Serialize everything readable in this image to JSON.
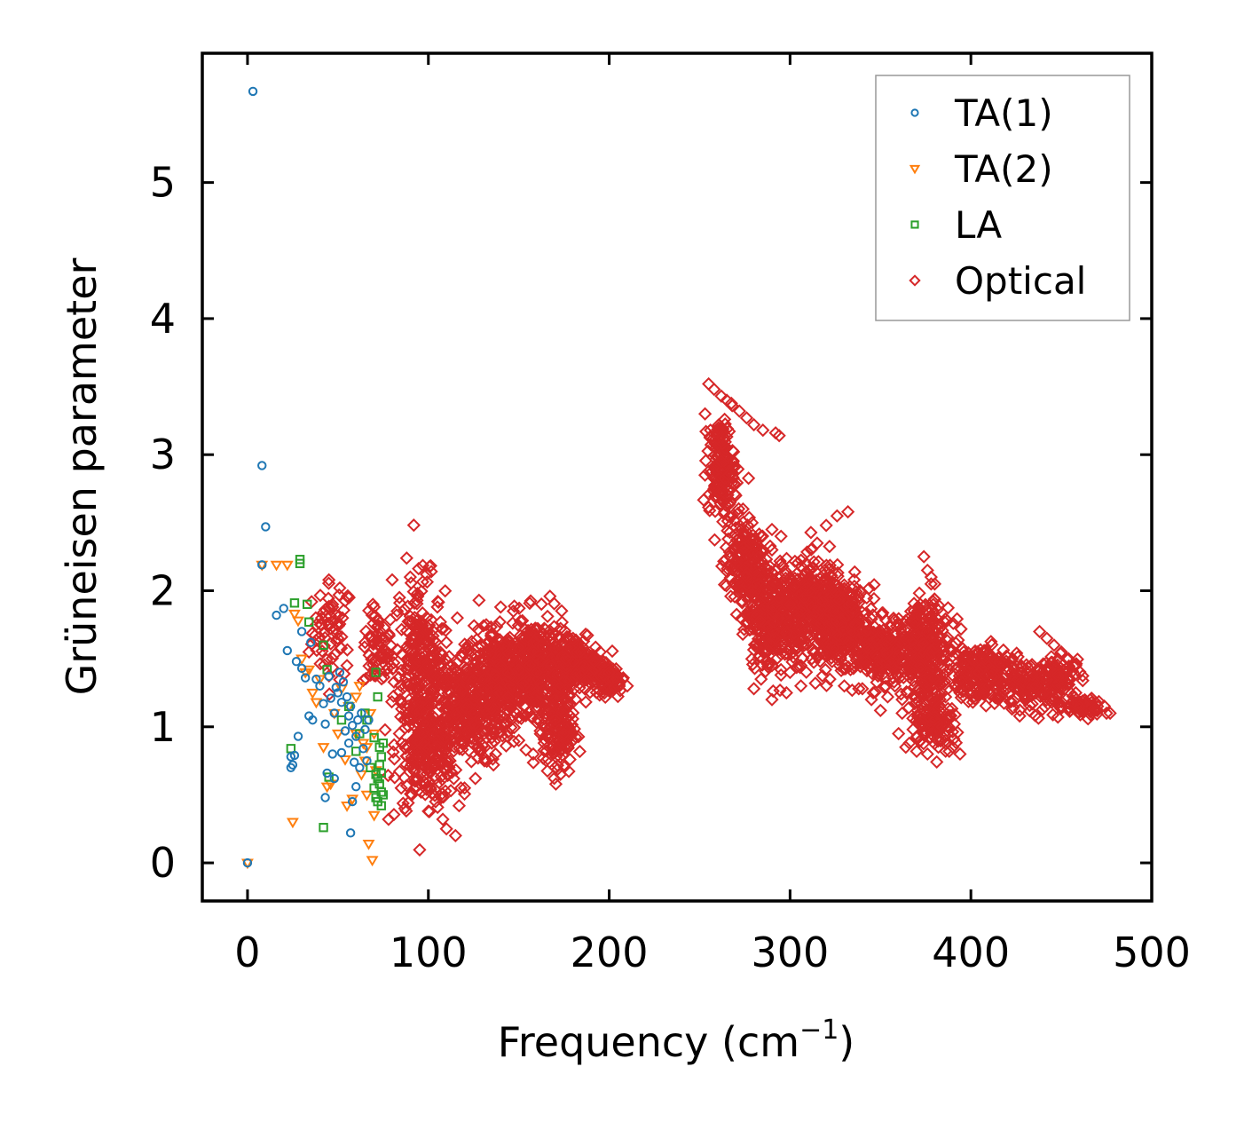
{
  "chart_data": {
    "type": "scatter",
    "title": "",
    "xlabel": "Frequency (cm",
    "xlabel_superscript": "−1",
    "xlabel_suffix": ")",
    "ylabel": "Grüneisen parameter",
    "xlim": [
      -25,
      500
    ],
    "ylim": [
      -0.28,
      5.95
    ],
    "x_ticks": [
      0,
      100,
      200,
      300,
      400,
      500
    ],
    "y_ticks": [
      0,
      1,
      2,
      3,
      4,
      5
    ],
    "x_tick_labels": [
      "0",
      "100",
      "200",
      "300",
      "400",
      "500"
    ],
    "y_tick_labels": [
      "0",
      "1",
      "2",
      "3",
      "4",
      "5"
    ],
    "grid": false,
    "legend_position": "top-right",
    "series": [
      {
        "name": "TA(1)",
        "marker": "circle",
        "color": "#1f77b4",
        "x": [
          3,
          8,
          10,
          0,
          8,
          16,
          20,
          22,
          25,
          26,
          27,
          28,
          30,
          30,
          32,
          34,
          35,
          36,
          38,
          40,
          42,
          43,
          44,
          45,
          46,
          47,
          48,
          48,
          49,
          50,
          51,
          52,
          52,
          53,
          54,
          55,
          56,
          56,
          57,
          58,
          59,
          60,
          60,
          61,
          62,
          63,
          64,
          65,
          66,
          67,
          24,
          24,
          57,
          43,
          58
        ],
        "y": [
          5.67,
          2.92,
          2.47,
          0.0,
          2.19,
          1.82,
          1.87,
          1.56,
          0.72,
          0.79,
          1.48,
          0.93,
          1.7,
          1.43,
          1.36,
          1.08,
          1.62,
          1.05,
          1.35,
          1.3,
          1.17,
          1.02,
          0.66,
          1.37,
          1.21,
          0.8,
          1.1,
          0.62,
          1.29,
          1.25,
          1.4,
          0.81,
          1.18,
          1.33,
          0.97,
          1.22,
          0.88,
          1.08,
          1.15,
          1.01,
          0.74,
          0.56,
          0.93,
          1.05,
          0.7,
          1.1,
          0.84,
          0.98,
          0.75,
          1.05,
          0.7,
          0.78,
          0.22,
          0.48,
          0.45
        ]
      },
      {
        "name": "TA(2)",
        "marker": "triangle-down",
        "color": "#ff7f0e",
        "x": [
          0,
          8,
          16,
          22,
          25,
          26,
          28,
          30,
          32,
          34,
          36,
          38,
          40,
          42,
          44,
          46,
          48,
          50,
          52,
          54,
          55,
          56,
          58,
          60,
          62,
          63,
          64,
          65,
          66,
          67,
          68,
          69,
          70,
          70,
          71,
          60,
          66
        ],
        "y": [
          0.0,
          2.19,
          2.19,
          2.19,
          0.3,
          1.83,
          1.78,
          1.5,
          1.4,
          1.42,
          1.25,
          1.18,
          1.35,
          0.85,
          0.56,
          0.58,
          1.1,
          0.95,
          1.28,
          0.76,
          0.42,
          1.15,
          0.47,
          1.22,
          1.3,
          0.65,
          0.88,
          0.75,
          0.5,
          0.14,
          1.1,
          0.02,
          0.35,
          0.95,
          0.68,
          0.95,
          0.85
        ]
      },
      {
        "name": "LA",
        "marker": "square",
        "color": "#2ca02c",
        "x": [
          29,
          29,
          26,
          24,
          33,
          34,
          42,
          44,
          42,
          45,
          52,
          56,
          60,
          62,
          65,
          68,
          70,
          71,
          72,
          73,
          74,
          75,
          71,
          72,
          73,
          74,
          75,
          73,
          72,
          74,
          66,
          70,
          74,
          71
        ],
        "y": [
          2.23,
          2.2,
          1.91,
          0.84,
          1.9,
          1.77,
          0.26,
          1.42,
          1.6,
          0.63,
          1.05,
          1.15,
          0.82,
          0.95,
          1.1,
          0.7,
          0.55,
          0.48,
          0.62,
          0.85,
          0.42,
          0.5,
          1.4,
          1.22,
          0.72,
          0.66,
          0.88,
          0.58,
          0.45,
          0.78,
          1.05,
          0.92,
          0.52,
          0.65
        ]
      },
      {
        "name": "Optical",
        "marker": "diamond",
        "color": "#d62728",
        "x": [
          34,
          38,
          41,
          45,
          47,
          51,
          55,
          65,
          70,
          72,
          80,
          84,
          88,
          90,
          94,
          99,
          105,
          108,
          110,
          112,
          116,
          122,
          128,
          132,
          140,
          147,
          152,
          160,
          168,
          172,
          175,
          180,
          187,
          195,
          200,
          205,
          210,
          100,
          104,
          108,
          110,
          115,
          117,
          120,
          126,
          131,
          136,
          143,
          150,
          154,
          158,
          164,
          167,
          170,
          173,
          84,
          90,
          96,
          100,
          106,
          112,
          118,
          124,
          131,
          137,
          144,
          150,
          156,
          162,
          168,
          174,
          180,
          186,
          192,
          197,
          202,
          85,
          92,
          95,
          104,
          108,
          115,
          120,
          125,
          130,
          135,
          140,
          145,
          150,
          155,
          160,
          165,
          170,
          175,
          180,
          78,
          87,
          96,
          104,
          112,
          120,
          128,
          136,
          144,
          152,
          160,
          168,
          176,
          184,
          192,
          200,
          255,
          258,
          262,
          265,
          268,
          272,
          276,
          280,
          285,
          292,
          294,
          253,
          256,
          259,
          262,
          266,
          270,
          274,
          279,
          284,
          290,
          296,
          300,
          253,
          258,
          263,
          268,
          273,
          278,
          283,
          288,
          293,
          298,
          303,
          309,
          315,
          320,
          326,
          332,
          270,
          276,
          282,
          288,
          294,
          300,
          306,
          312,
          318,
          324,
          330,
          336,
          342,
          348,
          354,
          360,
          366,
          372,
          378,
          285,
          290,
          295,
          300,
          306,
          312,
          318,
          324,
          330,
          336,
          342,
          348,
          354,
          360,
          366,
          372,
          378,
          384,
          390,
          396,
          402,
          408,
          290,
          298,
          306,
          314,
          322,
          330,
          338,
          346,
          354,
          362,
          370,
          378,
          386,
          394,
          402,
          410,
          418,
          426,
          434,
          442,
          450,
          458,
          466,
          470,
          477,
          360,
          364,
          370,
          376,
          382,
          388,
          394,
          366,
          370,
          378,
          386,
          390,
          374,
          376,
          378,
          380,
          368,
          372,
          380,
          384,
          438,
          442,
          446,
          450,
          454,
          458,
          430,
          436,
          440,
          445,
          450,
          455,
          460,
          470,
          475,
          290,
          295,
          280,
          284,
          290,
          295,
          340,
          345,
          350,
          358,
          365,
          362
        ],
        "y": [
          1.55,
          1.75,
          1.8,
          2.08,
          1.9,
          2.02,
          1.45,
          1.62,
          1.88,
          1.74,
          2.08,
          1.95,
          2.24,
          2.1,
          1.98,
          2.12,
          1.88,
          1.72,
          1.62,
          1.45,
          1.8,
          1.6,
          1.93,
          1.75,
          1.88,
          1.85,
          1.78,
          1.72,
          1.65,
          1.58,
          1.52,
          1.65,
          1.68,
          1.55,
          1.4,
          1.33,
          1.3,
          0.38,
          0.45,
          0.32,
          0.25,
          0.2,
          0.42,
          0.55,
          0.62,
          0.75,
          0.72,
          0.86,
          0.9,
          0.83,
          0.8,
          0.88,
          0.95,
          0.7,
          0.65,
          0.95,
          1.05,
          1.12,
          1.15,
          1.2,
          1.25,
          1.28,
          1.3,
          1.35,
          1.38,
          1.4,
          1.42,
          1.45,
          1.48,
          1.5,
          1.52,
          1.48,
          1.45,
          1.42,
          1.38,
          1.35,
          0.55,
          0.68,
          0.78,
          0.85,
          0.9,
          0.95,
          1.05,
          1.1,
          1.18,
          1.22,
          1.25,
          1.3,
          1.28,
          1.22,
          1.18,
          1.1,
          1.05,
          0.95,
          0.9,
          0.32,
          0.4,
          0.52,
          0.62,
          0.75,
          0.88,
          1.0,
          1.12,
          1.22,
          1.32,
          1.4,
          1.45,
          1.5,
          1.55,
          1.48,
          1.4,
          3.52,
          3.48,
          3.43,
          3.4,
          3.36,
          3.32,
          3.27,
          3.22,
          3.18,
          3.16,
          3.14,
          3.3,
          3.18,
          3.05,
          2.95,
          2.85,
          2.7,
          2.6,
          2.5,
          2.4,
          2.3,
          2.18,
          2.1,
          2.85,
          2.75,
          2.65,
          2.55,
          2.45,
          2.35,
          2.25,
          2.15,
          2.05,
          1.95,
          2.05,
          2.2,
          2.35,
          2.48,
          2.55,
          2.58,
          2.2,
          2.1,
          2.05,
          2.0,
          1.95,
          1.9,
          1.85,
          1.88,
          1.92,
          1.85,
          1.8,
          1.75,
          1.7,
          1.65,
          1.7,
          1.75,
          1.8,
          1.9,
          2.05,
          1.5,
          1.45,
          1.42,
          1.4,
          1.45,
          1.5,
          1.55,
          1.58,
          1.55,
          1.52,
          1.48,
          1.45,
          1.42,
          1.4,
          1.42,
          1.45,
          1.48,
          1.5,
          1.52,
          1.55,
          1.55,
          1.5,
          1.2,
          1.25,
          1.3,
          1.32,
          1.35,
          1.3,
          1.28,
          1.25,
          1.22,
          1.2,
          1.18,
          1.2,
          1.22,
          1.25,
          1.28,
          1.3,
          1.32,
          1.35,
          1.38,
          1.35,
          1.3,
          1.25,
          1.2,
          1.15,
          1.1,
          0.95,
          0.85,
          0.82,
          0.8,
          0.85,
          0.82,
          0.8,
          0.88,
          0.92,
          0.95,
          0.9,
          0.85,
          2.25,
          2.15,
          2.1,
          2.05,
          0.98,
          1.02,
          1.05,
          1.0,
          1.7,
          1.65,
          1.6,
          1.55,
          1.5,
          1.45,
          1.35,
          1.3,
          1.25,
          1.2,
          1.15,
          1.12,
          1.15,
          1.12,
          1.1,
          2.45,
          2.4,
          1.28,
          1.35,
          1.45,
          1.38,
          1.28,
          1.2,
          1.12,
          1.3,
          1.25,
          1.1
        ]
      }
    ],
    "optical_clusters": [
      {
        "xc": 47,
        "yc": 1.7,
        "sx": 8,
        "sy": 0.25,
        "n": 60
      },
      {
        "xc": 72,
        "yc": 1.55,
        "sx": 6,
        "sy": 0.2,
        "n": 60
      },
      {
        "xc": 95,
        "yc": 1.45,
        "sx": 10,
        "sy": 0.45,
        "n": 250
      },
      {
        "xc": 100,
        "yc": 0.8,
        "sx": 12,
        "sy": 0.25,
        "n": 200
      },
      {
        "xc": 120,
        "yc": 1.15,
        "sx": 15,
        "sy": 0.3,
        "n": 300
      },
      {
        "xc": 142,
        "yc": 1.35,
        "sx": 15,
        "sy": 0.25,
        "n": 350
      },
      {
        "xc": 160,
        "yc": 1.45,
        "sx": 12,
        "sy": 0.25,
        "n": 300
      },
      {
        "xc": 172,
        "yc": 1.0,
        "sx": 6,
        "sy": 0.25,
        "n": 150
      },
      {
        "xc": 185,
        "yc": 1.45,
        "sx": 10,
        "sy": 0.15,
        "n": 200
      },
      {
        "xc": 200,
        "yc": 1.35,
        "sx": 5,
        "sy": 0.07,
        "n": 80
      },
      {
        "xc": 262,
        "yc": 2.9,
        "sx": 5,
        "sy": 0.25,
        "n": 150
      },
      {
        "xc": 275,
        "yc": 2.2,
        "sx": 8,
        "sy": 0.25,
        "n": 200
      },
      {
        "xc": 290,
        "yc": 1.8,
        "sx": 10,
        "sy": 0.25,
        "n": 300
      },
      {
        "xc": 315,
        "yc": 1.85,
        "sx": 12,
        "sy": 0.25,
        "n": 400
      },
      {
        "xc": 330,
        "yc": 1.75,
        "sx": 10,
        "sy": 0.2,
        "n": 250
      },
      {
        "xc": 350,
        "yc": 1.55,
        "sx": 10,
        "sy": 0.15,
        "n": 250
      },
      {
        "xc": 375,
        "yc": 1.55,
        "sx": 10,
        "sy": 0.25,
        "n": 300
      },
      {
        "xc": 380,
        "yc": 1.05,
        "sx": 8,
        "sy": 0.15,
        "n": 100
      },
      {
        "xc": 405,
        "yc": 1.4,
        "sx": 12,
        "sy": 0.15,
        "n": 200
      },
      {
        "xc": 430,
        "yc": 1.28,
        "sx": 10,
        "sy": 0.12,
        "n": 120
      },
      {
        "xc": 450,
        "yc": 1.35,
        "sx": 8,
        "sy": 0.12,
        "n": 80
      },
      {
        "xc": 462,
        "yc": 1.15,
        "sx": 10,
        "sy": 0.05,
        "n": 60
      }
    ]
  }
}
